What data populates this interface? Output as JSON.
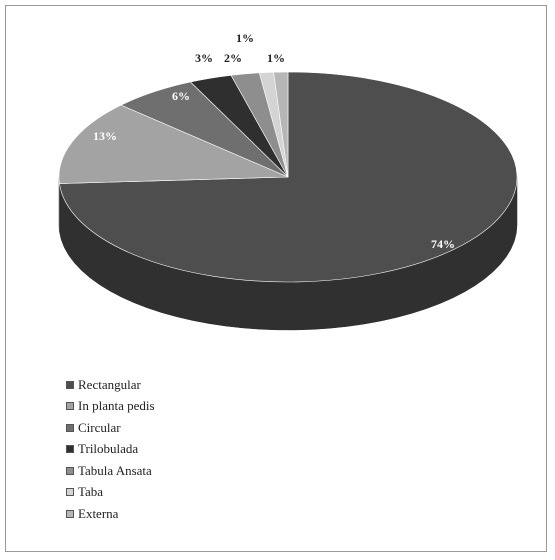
{
  "colors": {
    "Rectangular": "#4e4e4e",
    "In planta pedis": "#a3a3a3",
    "Circular": "#6f6f6f",
    "Trilobulada": "#2f2f2f",
    "Tabula Ansata": "#8e8e8e",
    "Taba": "#d4d4d4",
    "Externa": "#b6b6b6"
  },
  "chart_data": {
    "type": "pie",
    "style": "3d",
    "categories": [
      "Rectangular",
      "In planta pedis",
      "Circular",
      "Trilobulada",
      "Tabula Ansata",
      "Taba",
      "Externa"
    ],
    "values": [
      74,
      13,
      6,
      3,
      2,
      1,
      1
    ],
    "data_labels": [
      "74%",
      "13%",
      "6%",
      "3%",
      "2%",
      "1%",
      "1%"
    ],
    "legend_placement": "bottom-left",
    "title": ""
  }
}
